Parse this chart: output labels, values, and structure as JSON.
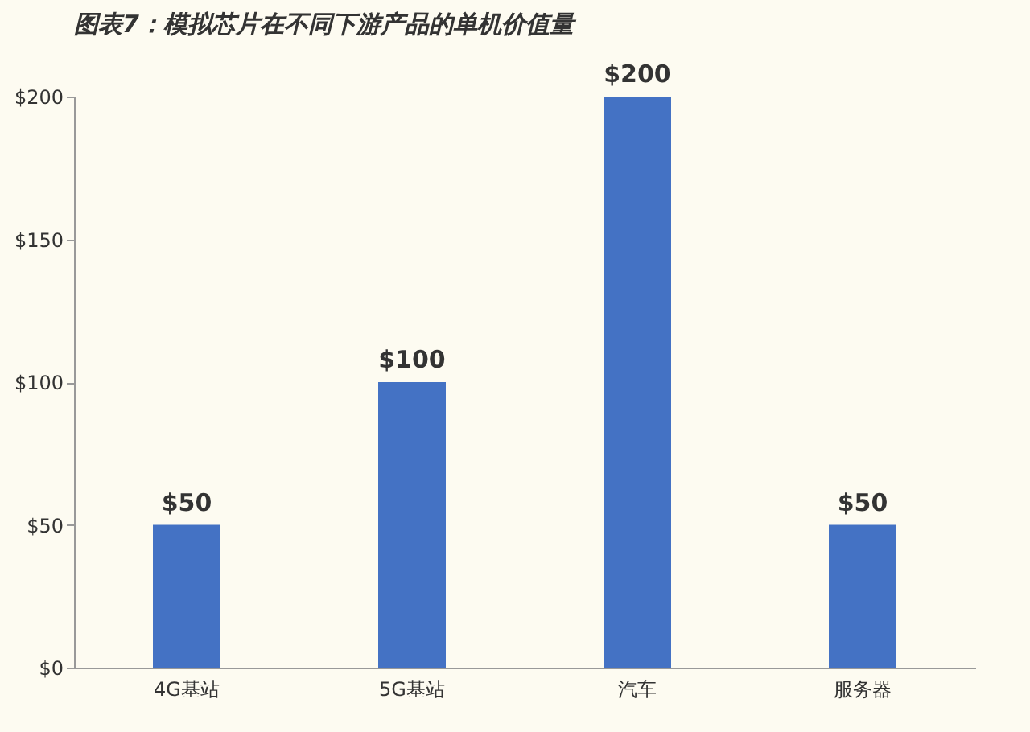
{
  "chart_data": {
    "type": "bar",
    "title": "图表7：模拟芯片在不同下游产品的单机价值量",
    "categories": [
      "4G基站",
      "5G基站",
      "汽车",
      "服务器"
    ],
    "values": [
      50,
      100,
      200,
      50
    ],
    "value_labels": [
      "$50",
      "$100",
      "$200",
      "$50"
    ],
    "color": "#4472c4",
    "ylim": [
      0,
      200
    ],
    "yticks": [
      {
        "value": 0,
        "label": "$0"
      },
      {
        "value": 50,
        "label": "$50"
      },
      {
        "value": 100,
        "label": "$100"
      },
      {
        "value": 150,
        "label": "$150"
      },
      {
        "value": 200,
        "label": "$200"
      }
    ],
    "grid": false
  }
}
